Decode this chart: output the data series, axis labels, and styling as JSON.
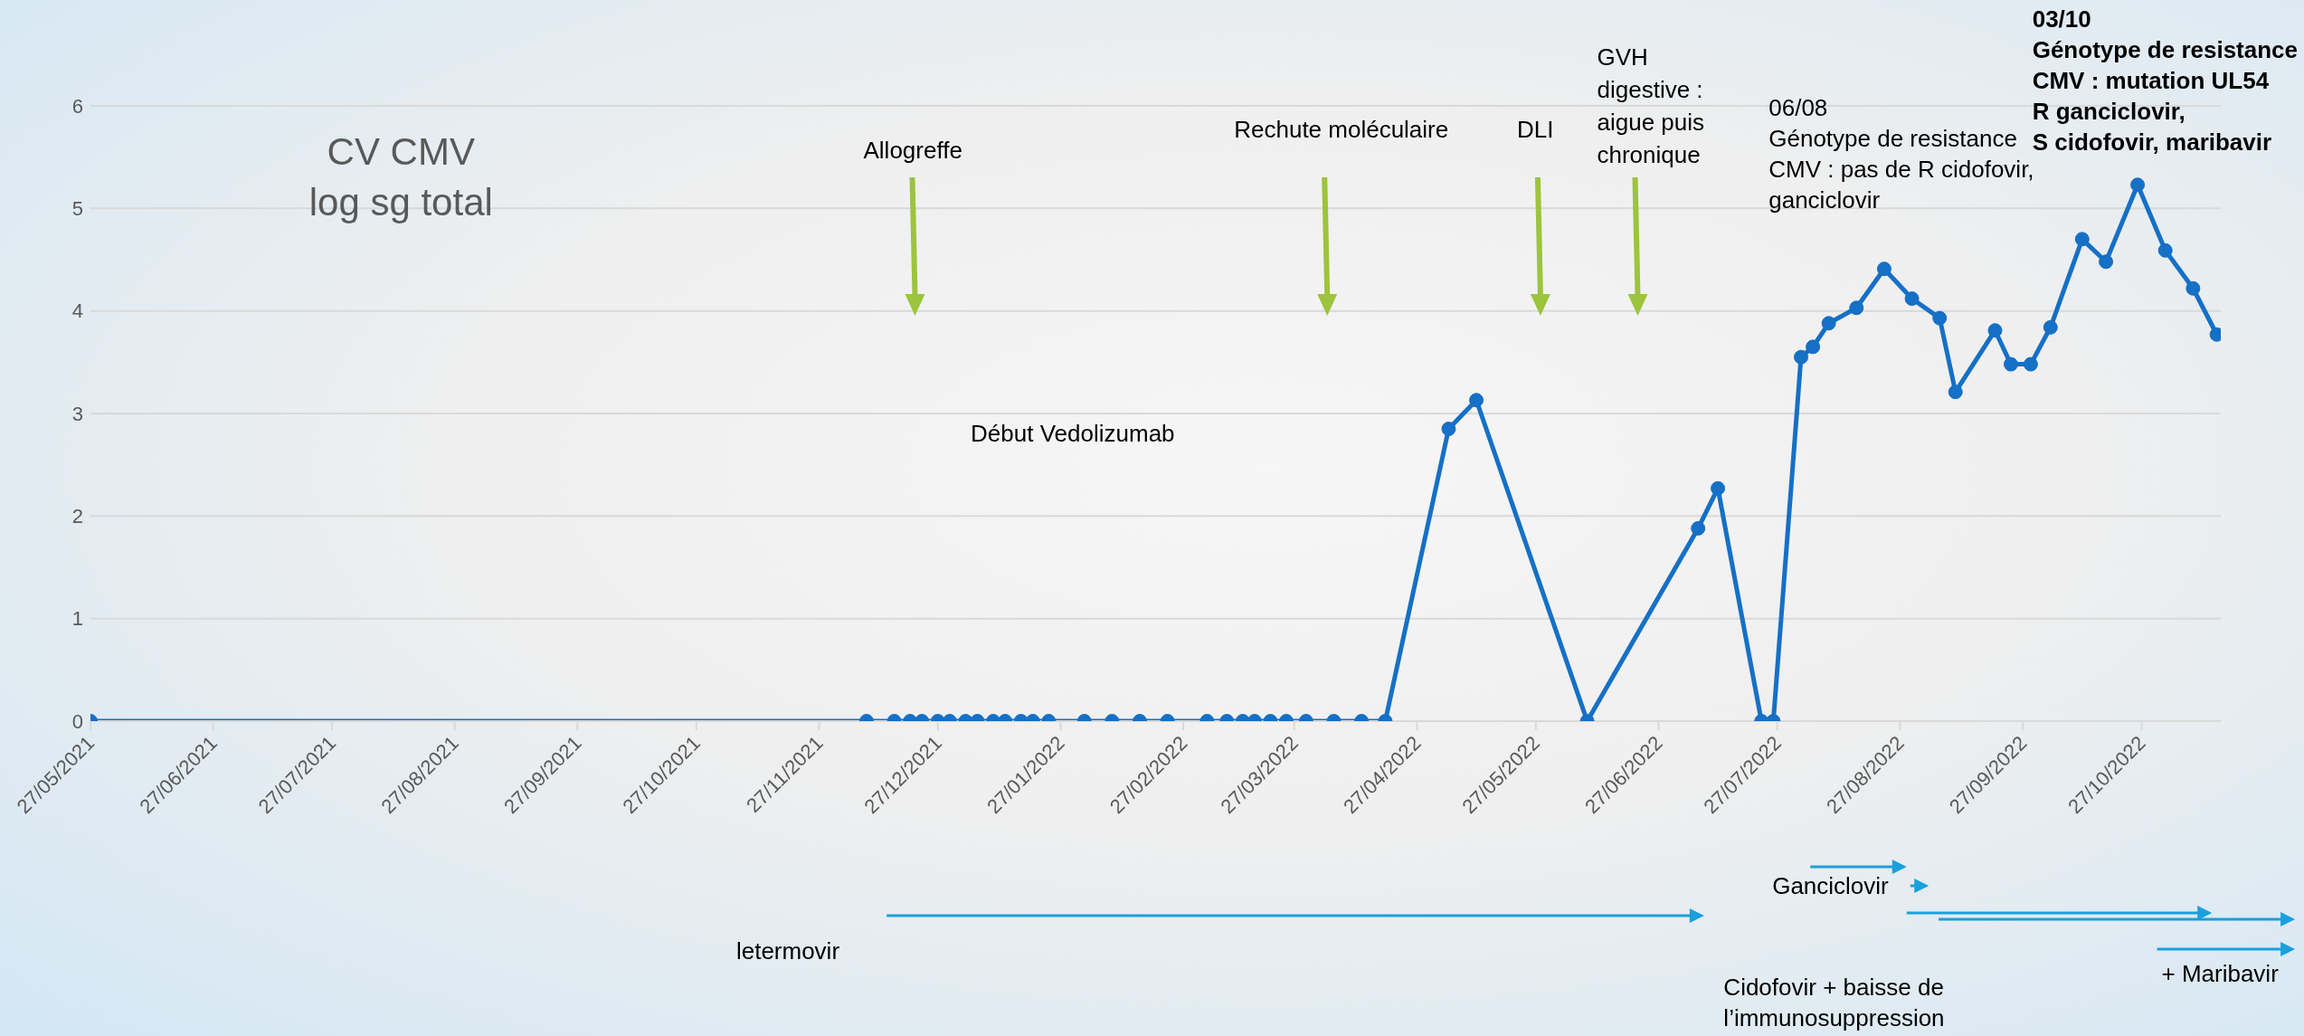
{
  "chart_data": {
    "type": "line",
    "title": "CV CMV\nlog sg total",
    "x": [
      "2021-05-27",
      "2021-12-09",
      "2021-12-16",
      "2021-12-20",
      "2021-12-23",
      "2021-12-27",
      "2021-12-30",
      "2022-01-03",
      "2022-01-06",
      "2022-01-10",
      "2022-01-13",
      "2022-01-17",
      "2022-01-20",
      "2022-01-24",
      "2022-02-02",
      "2022-02-09",
      "2022-02-16",
      "2022-02-23",
      "2022-03-05",
      "2022-03-10",
      "2022-03-14",
      "2022-03-17",
      "2022-03-21",
      "2022-03-25",
      "2022-03-30",
      "2022-04-06",
      "2022-04-13",
      "2022-04-19",
      "2022-05-05",
      "2022-05-12",
      "2022-06-09",
      "2022-07-07",
      "2022-07-12",
      "2022-07-23",
      "2022-07-26",
      "2022-08-02",
      "2022-08-05",
      "2022-08-09",
      "2022-08-16",
      "2022-08-23",
      "2022-08-30",
      "2022-09-06",
      "2022-09-10",
      "2022-09-20",
      "2022-09-24",
      "2022-09-29",
      "2022-10-04",
      "2022-10-12",
      "2022-10-18",
      "2022-10-26",
      "2022-11-02",
      "2022-11-09",
      "2022-11-15"
    ],
    "series": [
      {
        "color": "#1570c6",
        "values": [
          0,
          0,
          0,
          0,
          0,
          0,
          0,
          0,
          0,
          0,
          0,
          0,
          0,
          0,
          0,
          0,
          0,
          0,
          0,
          0,
          0,
          0,
          0,
          0,
          0,
          0,
          0,
          0,
          2.85,
          3.13,
          0,
          1.88,
          2.27,
          0,
          0,
          3.55,
          3.65,
          3.88,
          4.03,
          4.41,
          4.12,
          3.93,
          3.21,
          3.81,
          3.48,
          3.48,
          3.84,
          4.7,
          4.48,
          5.23,
          4.59,
          4.22,
          3.77
        ]
      }
    ],
    "xlim": [
      "2021-05-27",
      "2022-11-16"
    ],
    "xticks": [
      {
        "value": "2021-05-27",
        "label": "27/05/2021"
      },
      {
        "value": "2021-06-27",
        "label": "27/06/2021"
      },
      {
        "value": "2021-07-27",
        "label": "27/07/2021"
      },
      {
        "value": "2021-08-27",
        "label": "27/08/2021"
      },
      {
        "value": "2021-09-27",
        "label": "27/09/2021"
      },
      {
        "value": "2021-10-27",
        "label": "27/10/2021"
      },
      {
        "value": "2021-11-27",
        "label": "27/11/2021"
      },
      {
        "value": "2021-12-27",
        "label": "27/12/2021"
      },
      {
        "value": "2022-01-27",
        "label": "27/01/2022"
      },
      {
        "value": "2022-02-27",
        "label": "27/02/2022"
      },
      {
        "value": "2022-03-27",
        "label": "27/03/2022"
      },
      {
        "value": "2022-04-27",
        "label": "27/04/2022"
      },
      {
        "value": "2022-05-27",
        "label": "27/05/2022"
      },
      {
        "value": "2022-06-27",
        "label": "27/06/2022"
      },
      {
        "value": "2022-07-27",
        "label": "27/07/2022"
      },
      {
        "value": "2022-08-27",
        "label": "27/08/2022"
      },
      {
        "value": "2022-09-27",
        "label": "27/09/2022"
      },
      {
        "value": "2022-10-27",
        "label": "27/10/2022"
      }
    ],
    "ylim": [
      0,
      6
    ],
    "yticks": [
      0,
      1,
      2,
      3,
      4,
      5,
      6
    ],
    "grid": "y",
    "marker": "circle",
    "line_style": "solid",
    "annotations": [
      "Allogreffe",
      "Rechute moléculaire",
      "DLI",
      "GVH\ndigestive :\naigue puis\nchronique",
      "Début Vedolizumab",
      "06/08\nGénotype de resistance\nCMV : pas de R cidofovir,\nganciclovir",
      "03/10\nGénotype de resistance\nCMV : mutation UL54\nR ganciclovir,\nS cidofovir, maribavir",
      "letermovir",
      "Ganciclovir",
      "Cidofovir + baisse de\nl’immunosuppression",
      "+ Maribavir"
    ]
  }
}
